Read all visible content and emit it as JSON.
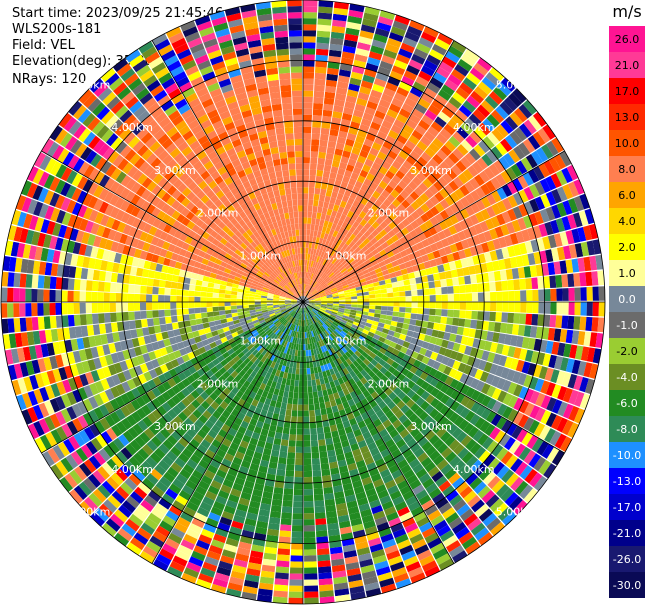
{
  "header": {
    "start_time": "Start time: 2023/09/25 21:45:46",
    "instrument": "WLS200s-181",
    "field": "Field: VEL",
    "elevation": "Elevation(deg): 35.30",
    "nrays": "NRays: 120"
  },
  "chart_data": {
    "type": "ppi",
    "field": "VEL",
    "nrays": 120,
    "range_rings_km": [
      1.0,
      2.0,
      3.0,
      4.0,
      5.0
    ],
    "range_labels": [
      "1.00km",
      "2.00km",
      "3.00km",
      "4.00km",
      "5.00km"
    ],
    "max_range_km": 5.0,
    "colorbar": {
      "unit": "m/s",
      "ticks": [
        "26.0",
        "21.0",
        "17.0",
        "13.0",
        "10.0",
        "8.0",
        "6.0",
        "4.0",
        "2.0",
        "1.0",
        "0.0",
        "-1.0",
        "-2.0",
        "-4.0",
        "-6.0",
        "-8.0",
        "-10.0",
        "-13.0",
        "-17.0",
        "-21.0",
        "-26.0",
        "-30.0"
      ],
      "colors": [
        "#ff1493",
        "#ff3a96",
        "#ff0000",
        "#ff2a00",
        "#ff5500",
        "#ff7f50",
        "#ffa500",
        "#ffd700",
        "#ffff00",
        "#ffff99",
        "#778899",
        "#6b6b6b",
        "#9acd32",
        "#6b8e23",
        "#228b22",
        "#2e8b57",
        "#1e90ff",
        "#0000ff",
        "#0000cd",
        "#00008b",
        "#191970",
        "#0a0a55"
      ]
    }
  }
}
